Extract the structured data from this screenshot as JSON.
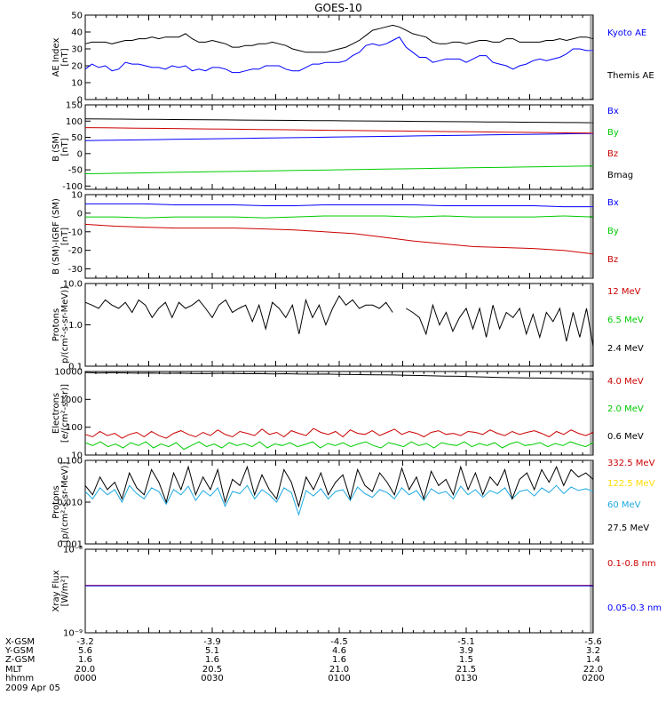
{
  "title": "GOES-10",
  "colors": {
    "black": "#000000",
    "blue": "#0000ff",
    "red": "#cc0000",
    "green": "#00cc00",
    "yellow": "#ffdd00",
    "cyan": "#1ba8e0"
  },
  "chart_data": [
    {
      "type": "line",
      "id": "ae",
      "ylabel": [
        "AE Index",
        "[nT]"
      ],
      "ylim": [
        0,
        50
      ],
      "ticks": [
        "0",
        "10",
        "20",
        "30",
        "40",
        "50"
      ],
      "tickvals": [
        0,
        10,
        20,
        30,
        40,
        50
      ],
      "series": [
        {
          "name": "Kyoto AE",
          "color": "blue",
          "values": [
            18,
            21,
            19,
            20,
            17,
            18,
            22,
            21,
            21,
            20,
            19,
            19,
            18,
            20,
            19,
            20,
            17,
            18,
            17,
            19,
            19,
            18,
            16,
            16,
            17,
            18,
            18,
            20,
            20,
            20,
            18,
            17,
            17,
            19,
            21,
            21,
            22,
            22,
            22,
            23,
            26,
            28,
            32,
            33,
            32,
            33,
            35,
            37,
            31,
            28,
            25,
            25,
            22,
            23,
            24,
            24,
            24,
            22,
            24,
            26,
            26,
            22,
            21,
            20,
            18,
            20,
            21,
            23,
            24,
            23,
            24,
            25,
            27,
            30,
            30,
            29,
            29
          ]
        },
        {
          "name": "Themis AE",
          "color": "black",
          "values": [
            33,
            34,
            34,
            34,
            33,
            34,
            35,
            35,
            36,
            36,
            37,
            36,
            37,
            37,
            37,
            39,
            36,
            34,
            34,
            35,
            34,
            33,
            31,
            31,
            32,
            32,
            33,
            33,
            34,
            33,
            32,
            30,
            29,
            28,
            28,
            28,
            28,
            29,
            30,
            31,
            33,
            35,
            38,
            41,
            42,
            43,
            44,
            43,
            41,
            39,
            38,
            37,
            34,
            33,
            33,
            34,
            34,
            33,
            34,
            35,
            35,
            34,
            34,
            36,
            36,
            34,
            34,
            34,
            34,
            35,
            35,
            36,
            35,
            36,
            37,
            37,
            36
          ]
        }
      ]
    },
    {
      "type": "line",
      "id": "bsm",
      "ylabel": [
        "B (SM)",
        "[nT]"
      ],
      "ylim": [
        -110,
        150
      ],
      "ticks": [
        "-100",
        "-50",
        "0",
        "50",
        "100",
        "150"
      ],
      "tickvals": [
        -100,
        -50,
        0,
        50,
        100,
        150
      ],
      "series": [
        {
          "name": "Bx",
          "color": "blue",
          "endpoints": [
            40,
            62
          ]
        },
        {
          "name": "By",
          "color": "green",
          "endpoints": [
            -62,
            -38
          ]
        },
        {
          "name": "Bz",
          "color": "red",
          "endpoints": [
            80,
            63
          ]
        },
        {
          "name": "Bmag",
          "color": "black",
          "endpoints": [
            107,
            95
          ]
        }
      ]
    },
    {
      "type": "line",
      "id": "bigrf",
      "ylabel": [
        "B (SM)-IGRF (SM)",
        "[nT]"
      ],
      "ylim": [
        -35,
        10
      ],
      "ticks": [
        "-30",
        "-20",
        "-10",
        "0",
        "10"
      ],
      "tickvals": [
        -30,
        -20,
        -10,
        0,
        10
      ],
      "series": [
        {
          "name": "Bx",
          "color": "blue",
          "values": [
            5,
            5,
            5,
            4.5,
            4.5,
            4.5,
            4,
            4,
            4.5,
            4.5,
            4.5,
            4.5,
            4,
            4,
            4,
            4,
            3.5,
            3.5
          ]
        },
        {
          "name": "By",
          "color": "green",
          "values": [
            -2,
            -2,
            -2.5,
            -2,
            -2,
            -2,
            -2.5,
            -2,
            -1.5,
            -1.5,
            -1.5,
            -2,
            -1.5,
            -2,
            -2,
            -2,
            -1.5,
            -2
          ]
        },
        {
          "name": "Bz",
          "color": "red",
          "values": [
            -6,
            -7,
            -7.5,
            -8,
            -8,
            -8,
            -8.5,
            -9,
            -10,
            -11,
            -13,
            -15,
            -16.5,
            -18,
            -18.5,
            -19,
            -20,
            -22
          ]
        }
      ]
    },
    {
      "type": "line",
      "id": "protons",
      "ylabel": [
        "Protons",
        "p/(cm²-s-sr-MeV)]"
      ],
      "ylim": [
        0.1,
        10
      ],
      "log": true,
      "ticks": [
        "0.1",
        "1.0",
        "10.0"
      ],
      "tickvals": [
        0.1,
        1,
        10
      ],
      "series": [
        {
          "name": "12 MeV",
          "color": "red",
          "values": []
        },
        {
          "name": "6.5 MeV",
          "color": "green",
          "values": []
        },
        {
          "name": "2.4 MeV",
          "color": "black",
          "values": [
            3.5,
            3,
            2.5,
            4,
            3,
            2.5,
            3.5,
            2,
            4,
            3,
            1.5,
            2.5,
            3.5,
            1.5,
            3.5,
            2.5,
            3,
            4,
            2.5,
            1.5,
            3,
            4,
            2,
            2.5,
            3,
            1.2,
            3,
            0.8,
            3.5,
            2.5,
            1.5,
            3,
            0.6,
            4,
            1.5,
            3,
            1,
            2.5,
            5,
            3,
            4,
            2.5,
            3,
            3,
            2.5,
            3.5,
            2,
            null,
            2.5,
            2,
            1.5,
            0.6,
            3,
            1,
            2,
            0.7,
            1.5,
            2.5,
            0.8,
            2.5,
            0.5,
            3,
            0.8,
            2,
            1.5,
            2.5,
            0.6,
            1.8,
            0.5,
            2,
            1.2,
            2.5,
            0.4,
            2,
            0.5,
            2.5,
            0.3
          ]
        }
      ]
    },
    {
      "type": "line",
      "id": "electrons",
      "ylabel": [
        "Electrons",
        "[e/(cm²-s-sr)]"
      ],
      "ylim": [
        10,
        10000
      ],
      "log": true,
      "ticks": [
        "10",
        "100",
        "1000",
        "10000"
      ],
      "tickvals": [
        10,
        100,
        1000,
        10000
      ],
      "series": [
        {
          "name": "4.0 MeV",
          "color": "red",
          "values": [
            55,
            45,
            70,
            50,
            60,
            40,
            55,
            65,
            45,
            70,
            50,
            40,
            60,
            75,
            55,
            45,
            65,
            50,
            80,
            55,
            45,
            70,
            60,
            50,
            85,
            55,
            65,
            45,
            75,
            60,
            50,
            90,
            65,
            55,
            70,
            45,
            80,
            60,
            55,
            75,
            50,
            65,
            85,
            55,
            70,
            60,
            45,
            65,
            75,
            55,
            60,
            50,
            70,
            65,
            55,
            80,
            60,
            50,
            70,
            55,
            65,
            75,
            60,
            45,
            70,
            55,
            80,
            60,
            50,
            65
          ]
        },
        {
          "name": "2.0 MeV",
          "color": "green",
          "values": [
            28,
            22,
            30,
            20,
            25,
            18,
            28,
            22,
            30,
            18,
            25,
            20,
            28,
            16,
            22,
            30,
            20,
            25,
            18,
            28,
            22,
            26,
            20,
            30,
            18,
            25,
            22,
            28,
            20,
            24,
            30,
            18,
            26,
            22,
            28,
            20,
            25,
            30,
            22,
            18,
            28,
            24,
            20,
            30,
            22,
            26,
            18,
            28,
            24,
            22,
            30,
            20,
            26,
            22,
            28,
            18,
            25,
            30,
            22,
            24,
            28,
            20,
            26,
            22,
            30,
            24,
            20,
            28
          ]
        },
        {
          "name": "0.6 MeV",
          "color": "black",
          "values": [
            9200,
            8800,
            9000,
            8900,
            8700,
            8800,
            8600,
            8700,
            8500,
            8400,
            8600,
            8500,
            8300,
            8400,
            8200,
            8300,
            8100,
            8000,
            8100,
            7900,
            7800,
            7700,
            7600,
            7500,
            7300,
            7200,
            7000,
            6800,
            6700,
            6500,
            6300,
            6100,
            6000,
            5900,
            5800,
            5700,
            5600,
            5500,
            5400
          ]
        }
      ]
    },
    {
      "type": "line",
      "id": "protons_hi",
      "ylabel": [
        "Protons",
        "[p/(cm²-s-sr-MeV)]"
      ],
      "ylim": [
        0.001,
        0.1
      ],
      "log": true,
      "ticks": [
        "0.001",
        "0.010",
        "0.100"
      ],
      "tickvals": [
        0.001,
        0.01,
        0.1
      ],
      "series": [
        {
          "name": "332.5 MeV",
          "color": "red",
          "values": []
        },
        {
          "name": "122.5 MeV",
          "color": "yellow",
          "values": []
        },
        {
          "name": "60 MeV",
          "color": "cyan",
          "values": [
            0.018,
            0.012,
            0.022,
            0.015,
            0.02,
            0.01,
            0.025,
            0.016,
            0.012,
            0.022,
            0.018,
            0.009,
            0.02,
            0.015,
            0.024,
            0.011,
            0.019,
            0.014,
            0.022,
            0.008,
            0.018,
            0.016,
            0.025,
            0.012,
            0.02,
            0.015,
            0.01,
            0.022,
            0.017,
            0.005,
            0.019,
            0.014,
            0.021,
            0.012,
            0.018,
            0.02,
            0.011,
            0.023,
            0.016,
            0.013,
            0.02,
            0.017,
            0.012,
            0.022,
            0.015,
            0.019,
            0.011,
            0.021,
            0.016,
            0.018,
            0.012,
            0.024,
            0.015,
            0.02,
            0.013,
            0.019,
            0.016,
            0.022,
            0.012,
            0.018,
            0.02,
            0.014,
            0.022,
            0.017,
            0.025,
            0.016,
            0.023,
            0.019,
            0.021,
            0.018
          ]
        },
        {
          "name": "27.5 MeV",
          "color": "black",
          "values": [
            0.025,
            0.015,
            0.04,
            0.02,
            0.03,
            0.012,
            0.05,
            0.022,
            0.015,
            0.06,
            0.03,
            0.01,
            0.05,
            0.02,
            0.07,
            0.015,
            0.04,
            0.02,
            0.06,
            0.01,
            0.035,
            0.025,
            0.07,
            0.015,
            0.045,
            0.02,
            0.012,
            0.06,
            0.03,
            0.008,
            0.04,
            0.02,
            0.05,
            0.015,
            0.03,
            0.045,
            0.012,
            0.06,
            0.025,
            0.018,
            0.05,
            0.03,
            0.015,
            0.065,
            0.02,
            0.04,
            0.012,
            0.055,
            0.025,
            0.035,
            0.015,
            0.07,
            0.02,
            0.05,
            0.015,
            0.04,
            0.025,
            0.06,
            0.012,
            0.035,
            0.05,
            0.02,
            0.06,
            0.03,
            0.07,
            0.025,
            0.06,
            0.04,
            0.05,
            0.035
          ]
        }
      ]
    },
    {
      "type": "line",
      "id": "xray",
      "ylabel": [
        "Xray Flux",
        "[W/m²]"
      ],
      "ylim": [
        1e-09,
        1e-08
      ],
      "log": true,
      "ticks": [
        "10⁻⁹",
        "10⁻⁸"
      ],
      "tickvals": [
        1e-09,
        1e-08
      ],
      "series": [
        {
          "name": "0.1-0.8 nm",
          "color": "red",
          "values": [
            3.7e-09,
            3.7e-09
          ]
        },
        {
          "name": "0.05-0.3 nm",
          "color": "blue",
          "values": [
            3.65e-09,
            3.65e-09
          ]
        }
      ]
    }
  ],
  "xaxis": {
    "rows": [
      {
        "label": "X-GSM",
        "values": [
          "-3.2",
          "-3.9",
          "-4.5",
          "-5.1",
          "-5.6"
        ]
      },
      {
        "label": "Y-GSM",
        "values": [
          "5.6",
          "5.1",
          "4.6",
          "3.9",
          "3.2"
        ]
      },
      {
        "label": "Z-GSM",
        "values": [
          "1.6",
          "1.6",
          "1.6",
          "1.5",
          "1.4"
        ]
      },
      {
        "label": "MLT",
        "values": [
          "20.0",
          "20.5",
          "21.0",
          "21.5",
          "22.0"
        ]
      },
      {
        "label": "hhmm",
        "values": [
          "0000",
          "0030",
          "0100",
          "0130",
          "0200"
        ]
      }
    ],
    "date": "2009 Apr 05"
  }
}
